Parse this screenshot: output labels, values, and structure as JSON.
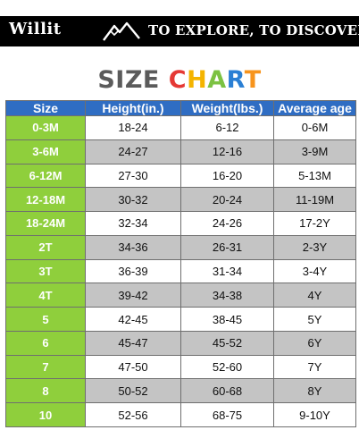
{
  "banner": {
    "brand": "Willit",
    "icon": "mountain-icon",
    "tagline": "TO EXPLORE, TO DISCOVER"
  },
  "title": {
    "word1": "SIZE",
    "word2_letters": [
      {
        "ch": "C",
        "color": "#e53935"
      },
      {
        "ch": "H",
        "color": "#f4b400"
      },
      {
        "ch": "A",
        "color": "#7cc242"
      },
      {
        "ch": "R",
        "color": "#2a7fd4"
      },
      {
        "ch": "T",
        "color": "#f7941d"
      }
    ]
  },
  "colors": {
    "header_bg": "#2f6dc3",
    "size_bg": "#8fcf3c",
    "shaded_row": "#c4c4c4"
  },
  "table": {
    "headers": [
      "Size",
      "Height(in.)",
      "Weight(lbs.)",
      "Average age"
    ],
    "rows": [
      {
        "size": "0-3M",
        "height": "18-24",
        "weight": "6-12",
        "age": "0-6M",
        "shaded": false
      },
      {
        "size": "3-6M",
        "height": "24-27",
        "weight": "12-16",
        "age": "3-9M",
        "shaded": true
      },
      {
        "size": "6-12M",
        "height": "27-30",
        "weight": "16-20",
        "age": "5-13M",
        "shaded": false
      },
      {
        "size": "12-18M",
        "height": "30-32",
        "weight": "20-24",
        "age": "11-19M",
        "shaded": true
      },
      {
        "size": "18-24M",
        "height": "32-34",
        "weight": "24-26",
        "age": "17-2Y",
        "shaded": false
      },
      {
        "size": "2T",
        "height": "34-36",
        "weight": "26-31",
        "age": "2-3Y",
        "shaded": true
      },
      {
        "size": "3T",
        "height": "36-39",
        "weight": "31-34",
        "age": "3-4Y",
        "shaded": false
      },
      {
        "size": "4T",
        "height": "39-42",
        "weight": "34-38",
        "age": "4Y",
        "shaded": true
      },
      {
        "size": "5",
        "height": "42-45",
        "weight": "38-45",
        "age": "5Y",
        "shaded": false
      },
      {
        "size": "6",
        "height": "45-47",
        "weight": "45-52",
        "age": "6Y",
        "shaded": true
      },
      {
        "size": "7",
        "height": "47-50",
        "weight": "52-60",
        "age": "7Y",
        "shaded": false
      },
      {
        "size": "8",
        "height": "50-52",
        "weight": "60-68",
        "age": "8Y",
        "shaded": true
      },
      {
        "size": "10",
        "height": "52-56",
        "weight": "68-75",
        "age": "9-10Y",
        "shaded": false
      }
    ]
  }
}
